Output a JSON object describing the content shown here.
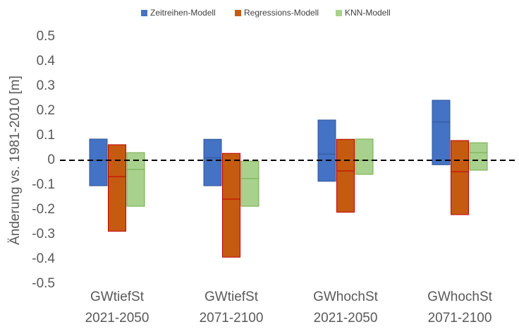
{
  "chart_data": {
    "type": "floating-bar",
    "y_label": "Änderung vs. 1981-2010 [m]",
    "categories": [
      [
        "GWtiefSt",
        "2021-2050"
      ],
      [
        "GWtiefSt",
        "2071-2100"
      ],
      [
        "GWhochSt",
        "2021-2050"
      ],
      [
        "GWhochSt",
        "2071-2100"
      ]
    ],
    "series": [
      {
        "name": "Zeitreihen-Modell",
        "color": "#4472c4",
        "edge_color": "#2f5597",
        "low": [
          -0.103,
          -0.103,
          -0.085,
          -0.018
        ],
        "high": [
          0.086,
          0.085,
          0.163,
          0.243
        ],
        "mid": [
          0,
          0.01,
          0.025,
          0.155
        ]
      },
      {
        "name": "Regressions-Modell",
        "color": "#c55a11",
        "edge_color": "#c00000",
        "low": [
          -0.287,
          -0.392,
          -0.21,
          -0.22
        ],
        "high": [
          0.063,
          0.028,
          0.085,
          0.08
        ],
        "mid": [
          -0.066,
          -0.157,
          -0.043,
          -0.046
        ]
      },
      {
        "name": "KNN-Modell",
        "color": "#a9d18e",
        "edge_color": "#70ad47",
        "low": [
          -0.186,
          -0.186,
          -0.057,
          -0.04
        ],
        "high": [
          0.031,
          -0.003,
          0.086,
          0.071
        ],
        "mid": [
          -0.037,
          -0.074,
          0,
          0.031
        ]
      }
    ],
    "reference_line": 0,
    "ylim": [
      -0.5,
      0.5
    ],
    "yticks": [
      0.5,
      0.4,
      0.3,
      0.2,
      0.1,
      0,
      -0.1,
      -0.2,
      -0.3,
      -0.4,
      -0.5
    ],
    "legend": "top"
  }
}
